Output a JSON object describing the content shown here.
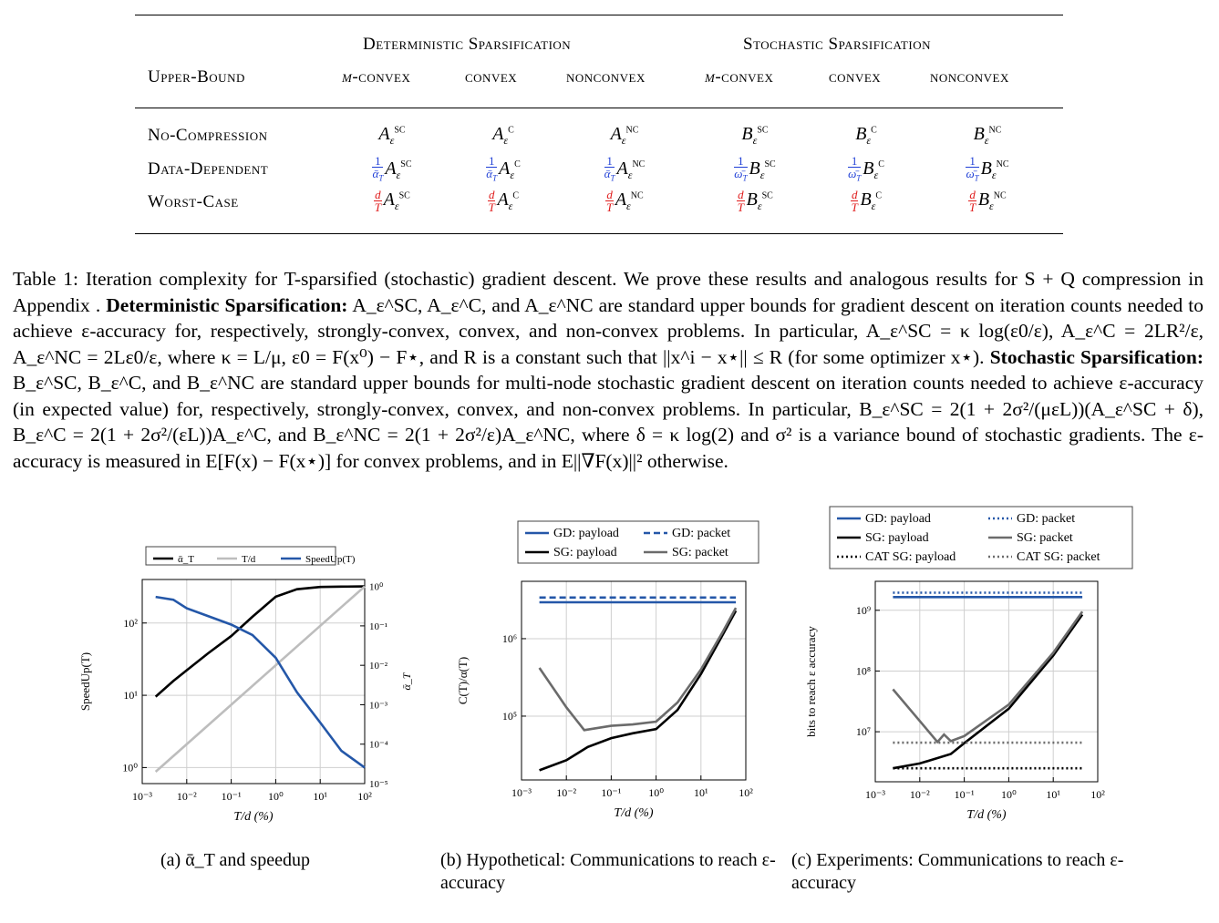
{
  "table": {
    "group_headers": [
      "Deterministic Sparsification",
      "Stochastic Sparsification"
    ],
    "corner_label": "Upper-Bound",
    "col_headers": [
      "μ-convex",
      "convex",
      "nonconvex",
      "μ-convex",
      "convex",
      "nonconvex"
    ],
    "rows": [
      {
        "label": "No-Compression",
        "cells": [
          "A_ε^SC",
          "A_ε^C",
          "A_ε^NC",
          "B_ε^SC",
          "B_ε^C",
          "B_ε^NC"
        ]
      },
      {
        "label": "Data-Dependent",
        "cells": [
          "(1/ᾱ_T) A_ε^SC",
          "(1/ᾱ_T) A_ε^C",
          "(1/ᾱ_T) A_ε^NC",
          "(1/ω̄_T) B_ε^SC",
          "(1/ω̄_T) B_ε^C",
          "(1/ω̄_T) B_ε^NC"
        ]
      },
      {
        "label": "Worst-Case",
        "cells": [
          "(d/T) A_ε^SC",
          "(d/T) A_ε^C",
          "(d/T) A_ε^NC",
          "(d/T) B_ε^SC",
          "(d/T) B_ε^C",
          "(d/T) B_ε^NC"
        ]
      }
    ]
  },
  "caption": {
    "prefix": "Table 1: Iteration complexity for T-sparsified (stochastic) gradient descent. We prove these results and analogous results for S + Q compression in Appendix .",
    "det_label": "Deterministic Sparsification:",
    "det_text": "A_ε^SC, A_ε^C, and A_ε^NC are standard upper bounds for gradient descent on iteration counts needed to achieve ε-accuracy for, respectively, strongly-convex, convex, and non-convex problems. In particular, A_ε^SC = κ log(ε0/ε), A_ε^C = 2LR²/ε, A_ε^NC = 2Lε0/ε, where κ = L/μ, ε0 = F(x⁰) − F⋆, and R is a constant such that ||x^i − x⋆|| ≤ R (for some optimizer x⋆).",
    "sto_label": "Stochastic Sparsification:",
    "sto_text": "B_ε^SC, B_ε^C, and B_ε^NC are standard upper bounds for multi-node stochastic gradient descent on iteration counts needed to achieve ε-accuracy (in expected value) for, respectively, strongly-convex, convex, and non-convex problems. In particular, B_ε^SC = 2(1 + 2σ²/(μεL))(A_ε^SC + δ), B_ε^C = 2(1 + 2σ²/(εL))A_ε^C, and B_ε^NC = 2(1 + 2σ²/ε)A_ε^NC, where δ = κ log(2) and σ² is a variance bound of stochastic gradients. The ε-accuracy is measured in E[F(x) − F(x⋆)] for convex problems, and in E||∇F(x)||² otherwise."
  },
  "subcaptions": {
    "a": "(a) ᾱ_T and speedup",
    "b": "(b) Hypothetical: Communications to reach ε-accuracy",
    "c": "(c) Experiments: Communications to reach ε-accuracy"
  },
  "colors": {
    "blue": "#2457a8",
    "black": "#000000",
    "gray": "#6b6b6b",
    "lightgray": "#bdbdbd",
    "red": "#e01b1b",
    "mathblue": "#1f3fd6"
  },
  "chart_data": [
    {
      "type": "line",
      "xlabel": "T/d (%)",
      "ylabel": "SpeedUp(T)",
      "y2label": "ᾱ_T",
      "x_scale": "log",
      "y_scale": "log",
      "y2_scale": "log",
      "xlim": [
        0.001,
        100
      ],
      "ylim": [
        0.6,
        400
      ],
      "y2lim": [
        1e-05,
        1.5
      ],
      "x_ticks": [
        "10⁻³",
        "10⁻²",
        "10⁻¹",
        "10⁰",
        "10¹",
        "10²"
      ],
      "y_ticks": [
        "10⁰",
        "10¹",
        "10²"
      ],
      "y2_ticks": [
        "10⁰",
        "10⁻¹",
        "10⁻²",
        "10⁻³",
        "10⁻⁴",
        "10⁻⁵"
      ],
      "legend": [
        "ᾱ_T",
        "T/d",
        "SpeedUp(T)"
      ],
      "legend_position": "top",
      "grid": true,
      "series": [
        {
          "name": "ᾱ_T",
          "axis": "y2",
          "color": "black",
          "x": [
            0.002,
            0.005,
            0.01,
            0.03,
            0.1,
            0.3,
            1,
            3,
            10,
            30,
            100
          ],
          "y": [
            0.0016,
            0.004,
            0.0075,
            0.02,
            0.055,
            0.17,
            0.55,
            0.85,
            0.97,
            0.99,
            1.0
          ]
        },
        {
          "name": "T/d",
          "axis": "y2",
          "color": "lightgray",
          "x": [
            0.002,
            100
          ],
          "y": [
            2e-05,
            1.0
          ]
        },
        {
          "name": "SpeedUp(T)",
          "axis": "y",
          "color": "blue",
          "x": [
            0.002,
            0.005,
            0.01,
            0.03,
            0.1,
            0.3,
            1,
            3,
            10,
            30,
            100
          ],
          "y": [
            230,
            210,
            160,
            125,
            95,
            68,
            33,
            11,
            4.2,
            1.7,
            1.0
          ]
        }
      ]
    },
    {
      "type": "line",
      "xlabel": "T/d (%)",
      "ylabel": "C(T)/α(T)",
      "x_scale": "log",
      "y_scale": "log",
      "xlim": [
        0.001,
        100
      ],
      "ylim": [
        15000,
        5500000
      ],
      "x_ticks": [
        "10⁻³",
        "10⁻²",
        "10⁻¹",
        "10⁰",
        "10¹",
        "10²"
      ],
      "y_ticks": [
        "10⁵",
        "10⁶"
      ],
      "legend": [
        "GD: payload",
        "GD: packet",
        "SG: payload",
        "SG: packet"
      ],
      "legend_position": "top",
      "grid": true,
      "series": [
        {
          "name": "GD: payload",
          "color": "blue",
          "dash": false,
          "x": [
            0.0025,
            60
          ],
          "y": [
            2950000,
            2950000
          ]
        },
        {
          "name": "GD: packet",
          "color": "blue",
          "dash": true,
          "x": [
            0.0025,
            60
          ],
          "y": [
            3400000,
            3400000
          ]
        },
        {
          "name": "SG: payload",
          "color": "black",
          "dash": false,
          "x": [
            0.0025,
            0.01,
            0.03,
            0.1,
            0.3,
            1,
            3,
            10,
            30,
            60
          ],
          "y": [
            20000,
            27000,
            40000,
            52000,
            60000,
            68000,
            120000,
            350000,
            1100000,
            2300000
          ]
        },
        {
          "name": "SG: packet",
          "color": "gray",
          "dash": false,
          "x": [
            0.0025,
            0.01,
            0.025,
            0.1,
            0.3,
            1,
            3,
            10,
            30,
            60
          ],
          "y": [
            420000,
            130000,
            66000,
            75000,
            78000,
            85000,
            150000,
            400000,
            1200000,
            2500000
          ]
        }
      ]
    },
    {
      "type": "line",
      "xlabel": "T/d (%)",
      "ylabel": "bits to reach ε accuracy",
      "x_scale": "log",
      "y_scale": "log",
      "xlim": [
        0.001,
        100
      ],
      "ylim": [
        1500000,
        3000000000
      ],
      "x_ticks": [
        "10⁻³",
        "10⁻²",
        "10⁻¹",
        "10⁰",
        "10¹",
        "10²"
      ],
      "y_ticks": [
        "10⁷",
        "10⁸",
        "10⁹"
      ],
      "legend": [
        "GD: payload",
        "GD: packet",
        "SG: payload",
        "SG: packet",
        "CAT SG: payload",
        "CAT SG: packet"
      ],
      "legend_position": "top",
      "grid": true,
      "series": [
        {
          "name": "GD: payload",
          "color": "blue",
          "dash": "solid",
          "x": [
            0.0025,
            45
          ],
          "y": [
            1650000000,
            1650000000
          ]
        },
        {
          "name": "GD: packet",
          "color": "blue",
          "dash": "dotted",
          "x": [
            0.0025,
            45
          ],
          "y": [
            1950000000,
            1950000000
          ]
        },
        {
          "name": "SG: payload",
          "color": "black",
          "dash": "solid",
          "x": [
            0.0025,
            0.01,
            0.05,
            0.1,
            1,
            10,
            45
          ],
          "y": [
            2500000,
            3000000,
            4300000,
            6500000,
            24000000,
            180000000,
            850000000
          ]
        },
        {
          "name": "SG: packet",
          "color": "gray",
          "dash": "solid",
          "x": [
            0.0025,
            0.025,
            0.035,
            0.05,
            0.1,
            1,
            10,
            45
          ],
          "y": [
            50000000,
            6800000,
            9000000,
            7000000,
            8500000,
            28000000,
            200000000,
            950000000
          ]
        },
        {
          "name": "CAT SG: payload",
          "color": "black",
          "dash": "dotted",
          "x": [
            0.0025,
            45
          ],
          "y": [
            2500000,
            2500000
          ]
        },
        {
          "name": "CAT SG: packet",
          "color": "gray",
          "dash": "dotted",
          "x": [
            0.0025,
            45
          ],
          "y": [
            6600000,
            6600000
          ]
        }
      ]
    }
  ]
}
